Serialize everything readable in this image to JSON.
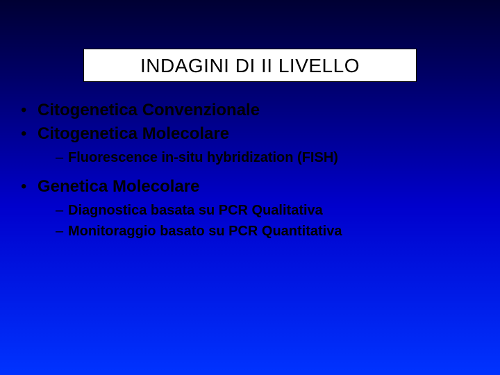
{
  "slide": {
    "title": "INDAGINI DI II LIVELLO",
    "items": [
      {
        "label": "Citogenetica Convenzionale",
        "subitems": []
      },
      {
        "label": "Citogenetica Molecolare",
        "subitems": [
          {
            "label": "Fluorescence in-situ hybridization (FISH)"
          }
        ]
      },
      {
        "label": "Genetica Molecolare",
        "subitems": [
          {
            "label": "Diagnostica basata su PCR Qualitativa"
          },
          {
            "label": "Monitoraggio basato su PCR Quantitativa"
          }
        ]
      }
    ],
    "colors": {
      "background_gradient_top": "#000033",
      "background_gradient_bottom": "#0033ff",
      "title_bg": "#ffffff",
      "title_border": "#000000",
      "text": "#000000"
    },
    "typography": {
      "title_fontsize": 28,
      "title_weight": "normal",
      "l1_fontsize": 24,
      "l1_weight": "bold",
      "l2_fontsize": 20,
      "l2_weight": "bold",
      "font_family": "Arial"
    },
    "bullets": {
      "l1": "•",
      "l2": "–"
    }
  }
}
